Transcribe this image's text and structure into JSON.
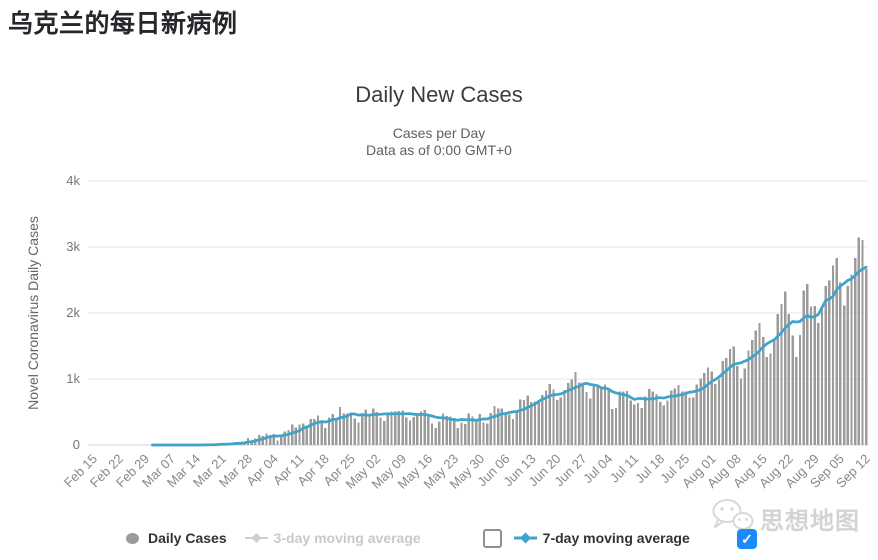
{
  "page": {
    "title": "乌克兰的每日新病例"
  },
  "watermark": {
    "text": "思想地图"
  },
  "icons": {
    "check": "✓"
  },
  "overlay_checkboxes": {
    "legend_checkbox_checked": false,
    "corner_checkbox_checked": true,
    "checked_color": "#1a8cfa"
  },
  "chart_data": {
    "type": "bar",
    "title": "Daily New Cases",
    "subtitle1": "Cases per Day",
    "subtitle2": "Data as of 0:00 GMT+0",
    "ylabel": "Novel Coronavirus Daily Cases",
    "xlabel": "",
    "ylim": [
      0,
      4000
    ],
    "grid": "horizontal",
    "legend_position": "bottom",
    "y_tick_labels": [
      "0",
      "1k",
      "2k",
      "3k",
      "4k"
    ],
    "x_tick_interval_days": 7,
    "x_tick_labels": [
      "Feb 15",
      "Feb 22",
      "Feb 29",
      "Mar 07",
      "Mar 14",
      "Mar 21",
      "Mar 28",
      "Apr 04",
      "Apr 11",
      "Apr 18",
      "Apr 25",
      "May 02",
      "May 09",
      "May 16",
      "May 23",
      "May 30",
      "Jun 06",
      "Jun 13",
      "Jun 20",
      "Jun 27",
      "Jul 04",
      "Jul 11",
      "Jul 18",
      "Jul 25",
      "Aug 01",
      "Aug 08",
      "Aug 15",
      "Aug 22",
      "Aug 29",
      "Sep 05",
      "Sep 12"
    ],
    "series": [
      {
        "name": "Daily Cases",
        "type": "bar",
        "color": "#9b9b9b",
        "enabled": true,
        "values": [
          0,
          0,
          0,
          0,
          0,
          0,
          0,
          0,
          0,
          0,
          0,
          0,
          0,
          0,
          0,
          0,
          0,
          1,
          0,
          0,
          0,
          1,
          0,
          0,
          0,
          1,
          0,
          0,
          0,
          0,
          4,
          7,
          5,
          5,
          12,
          21,
          26,
          9,
          24,
          32,
          43,
          46,
          46,
          109,
          62,
          97,
          149,
          134,
          175,
          154,
          164,
          68,
          143,
          206,
          224,
          311,
          266,
          308,
          325,
          270,
          392,
          397,
          444,
          343,
          261,
          415,
          467,
          397,
          578,
          477,
          478,
          492,
          401,
          339,
          456,
          540,
          455,
          550,
          502,
          418,
          366,
          487,
          507,
          504,
          515,
          522,
          416,
          375,
          422,
          483,
          508,
          528,
          433,
          325,
          260,
          354,
          476,
          442,
          432,
          406,
          259,
          339,
          321,
          477,
          429,
          393,
          468,
          340,
          328,
          483,
          588,
          553,
          550,
          485,
          463,
          394,
          525,
          689,
          683,
          753,
          648,
          656,
          666,
          758,
          829,
          921,
          841,
          681,
          721,
          833,
          940,
          994,
          1109,
          948,
          917,
          806,
          706,
          889,
          914,
          876,
          914,
          823,
          543,
          564,
          807,
          810,
          819,
          678,
          612,
          638,
          564,
          738,
          848,
          809,
          771,
          651,
          596,
          673,
          829,
          856,
          907,
          811,
          807,
          721,
          719,
          918,
          1007,
          1090,
          1172,
          1112,
          921,
          990,
          1271,
          1318,
          1453,
          1489,
          1199,
          1008,
          1158,
          1433,
          1592,
          1732,
          1847,
          1637,
          1335,
          1385,
          1616,
          1988,
          2134,
          2328,
          1987,
          1658,
          1334,
          1670,
          2341,
          2438,
          2096,
          2107,
          1850,
          2088,
          2411,
          2495,
          2723,
          2836,
          2464,
          2113,
          2411,
          2582,
          2836,
          3144,
          3103,
          2669
        ]
      },
      {
        "name": "3-day moving average",
        "type": "line",
        "color": "#cfcfcf",
        "enabled": false
      },
      {
        "name": "7-day moving average",
        "type": "line",
        "color": "#3fa3cb",
        "enabled": true,
        "window_days": 7
      }
    ]
  }
}
